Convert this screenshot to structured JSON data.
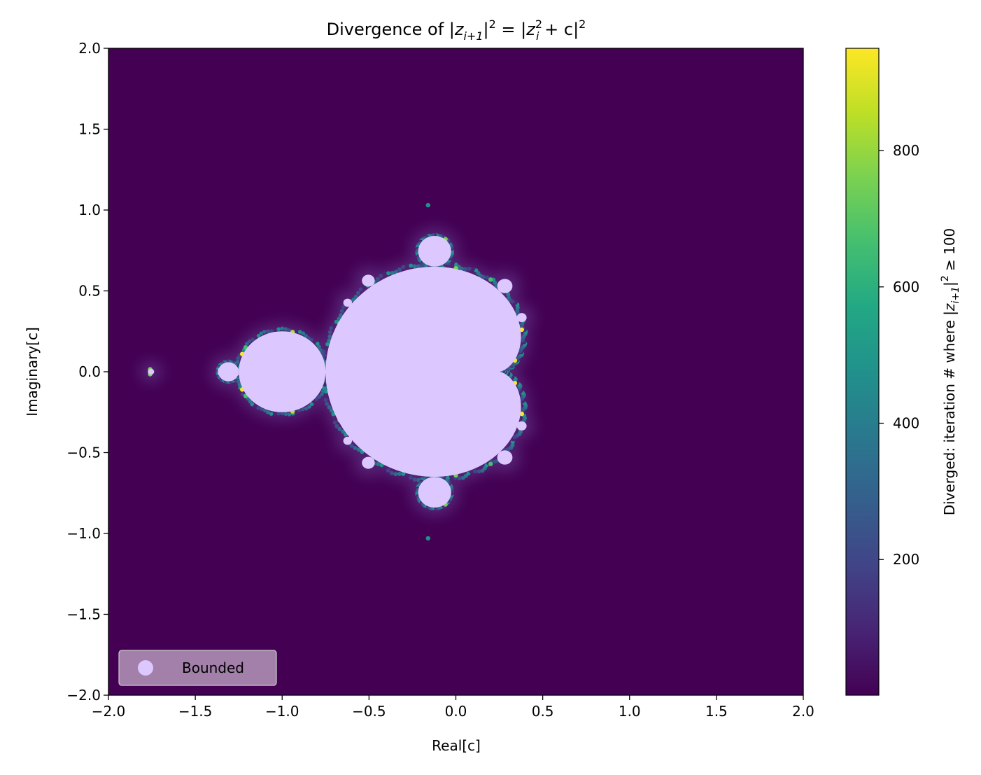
{
  "chart_data": {
    "type": "scatter",
    "title": "Divergence of |z_{i+1}|^2 = |z_i^2 + c|^2",
    "title_parts": {
      "prefix": "Divergence of |",
      "z1": "z",
      "sub1": "i+1",
      "mid": "|",
      "sup1": "2",
      "eq": " = |",
      "z2": "z",
      "sup2": "2",
      "sub2": "i",
      "tail": " + c|",
      "sup3": "2"
    },
    "xlabel": "Real[c]",
    "ylabel": "Imaginary[c]",
    "xlim": [
      -2.0,
      2.0
    ],
    "ylim": [
      -2.0,
      2.0
    ],
    "x_ticks": [
      "−2.0",
      "−1.5",
      "−1.0",
      "−0.5",
      "0.0",
      "0.5",
      "1.0",
      "1.5",
      "2.0"
    ],
    "x_tick_values": [
      -2.0,
      -1.5,
      -1.0,
      -0.5,
      0.0,
      0.5,
      1.0,
      1.5,
      2.0
    ],
    "y_ticks": [
      "2.0",
      "1.5",
      "1.0",
      "0.5",
      "0.0",
      "−0.5",
      "−1.0",
      "−1.5",
      "−2.0"
    ],
    "y_tick_values": [
      2.0,
      1.5,
      1.0,
      0.5,
      0.0,
      -0.5,
      -1.0,
      -1.5,
      -2.0
    ],
    "grid": false,
    "legend_position": "lower-left",
    "series": [
      {
        "name": "Bounded",
        "color": "#dcc8ff"
      }
    ],
    "colorbar": {
      "label": "Diverged: iteration # where |z_{i+1}|^2 ≥ 100",
      "label_parts": {
        "prefix": "Diverged: iteration # where |",
        "z": "z",
        "sub": "i+1",
        "bar": "|",
        "sup": "2",
        "tail": " ≥ 100"
      },
      "colormap": "viridis",
      "range": [
        1,
        950
      ],
      "ticks": [
        "200",
        "400",
        "600",
        "800"
      ],
      "tick_values": [
        200,
        400,
        600,
        800
      ]
    },
    "background_color": "#440154",
    "bounded_color": "#dcc8ff"
  }
}
